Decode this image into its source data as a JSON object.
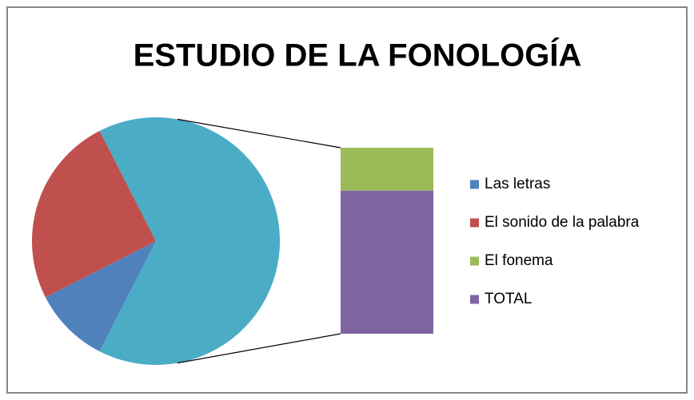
{
  "chart_data": {
    "type": "bar_of_pie",
    "title": "ESTUDIO DE LA FONOLOGÍA",
    "categories": [
      "Las letras",
      "El sonido de la palabra",
      "El fonema",
      "TOTAL"
    ],
    "values": [
      10,
      25,
      15,
      50
    ],
    "colors": [
      "#4f81bd",
      "#c0504d",
      "#9bbb59",
      "#8064a2"
    ],
    "other_color": "#4bacc6",
    "second_plot_count": 2,
    "legend": "right"
  }
}
